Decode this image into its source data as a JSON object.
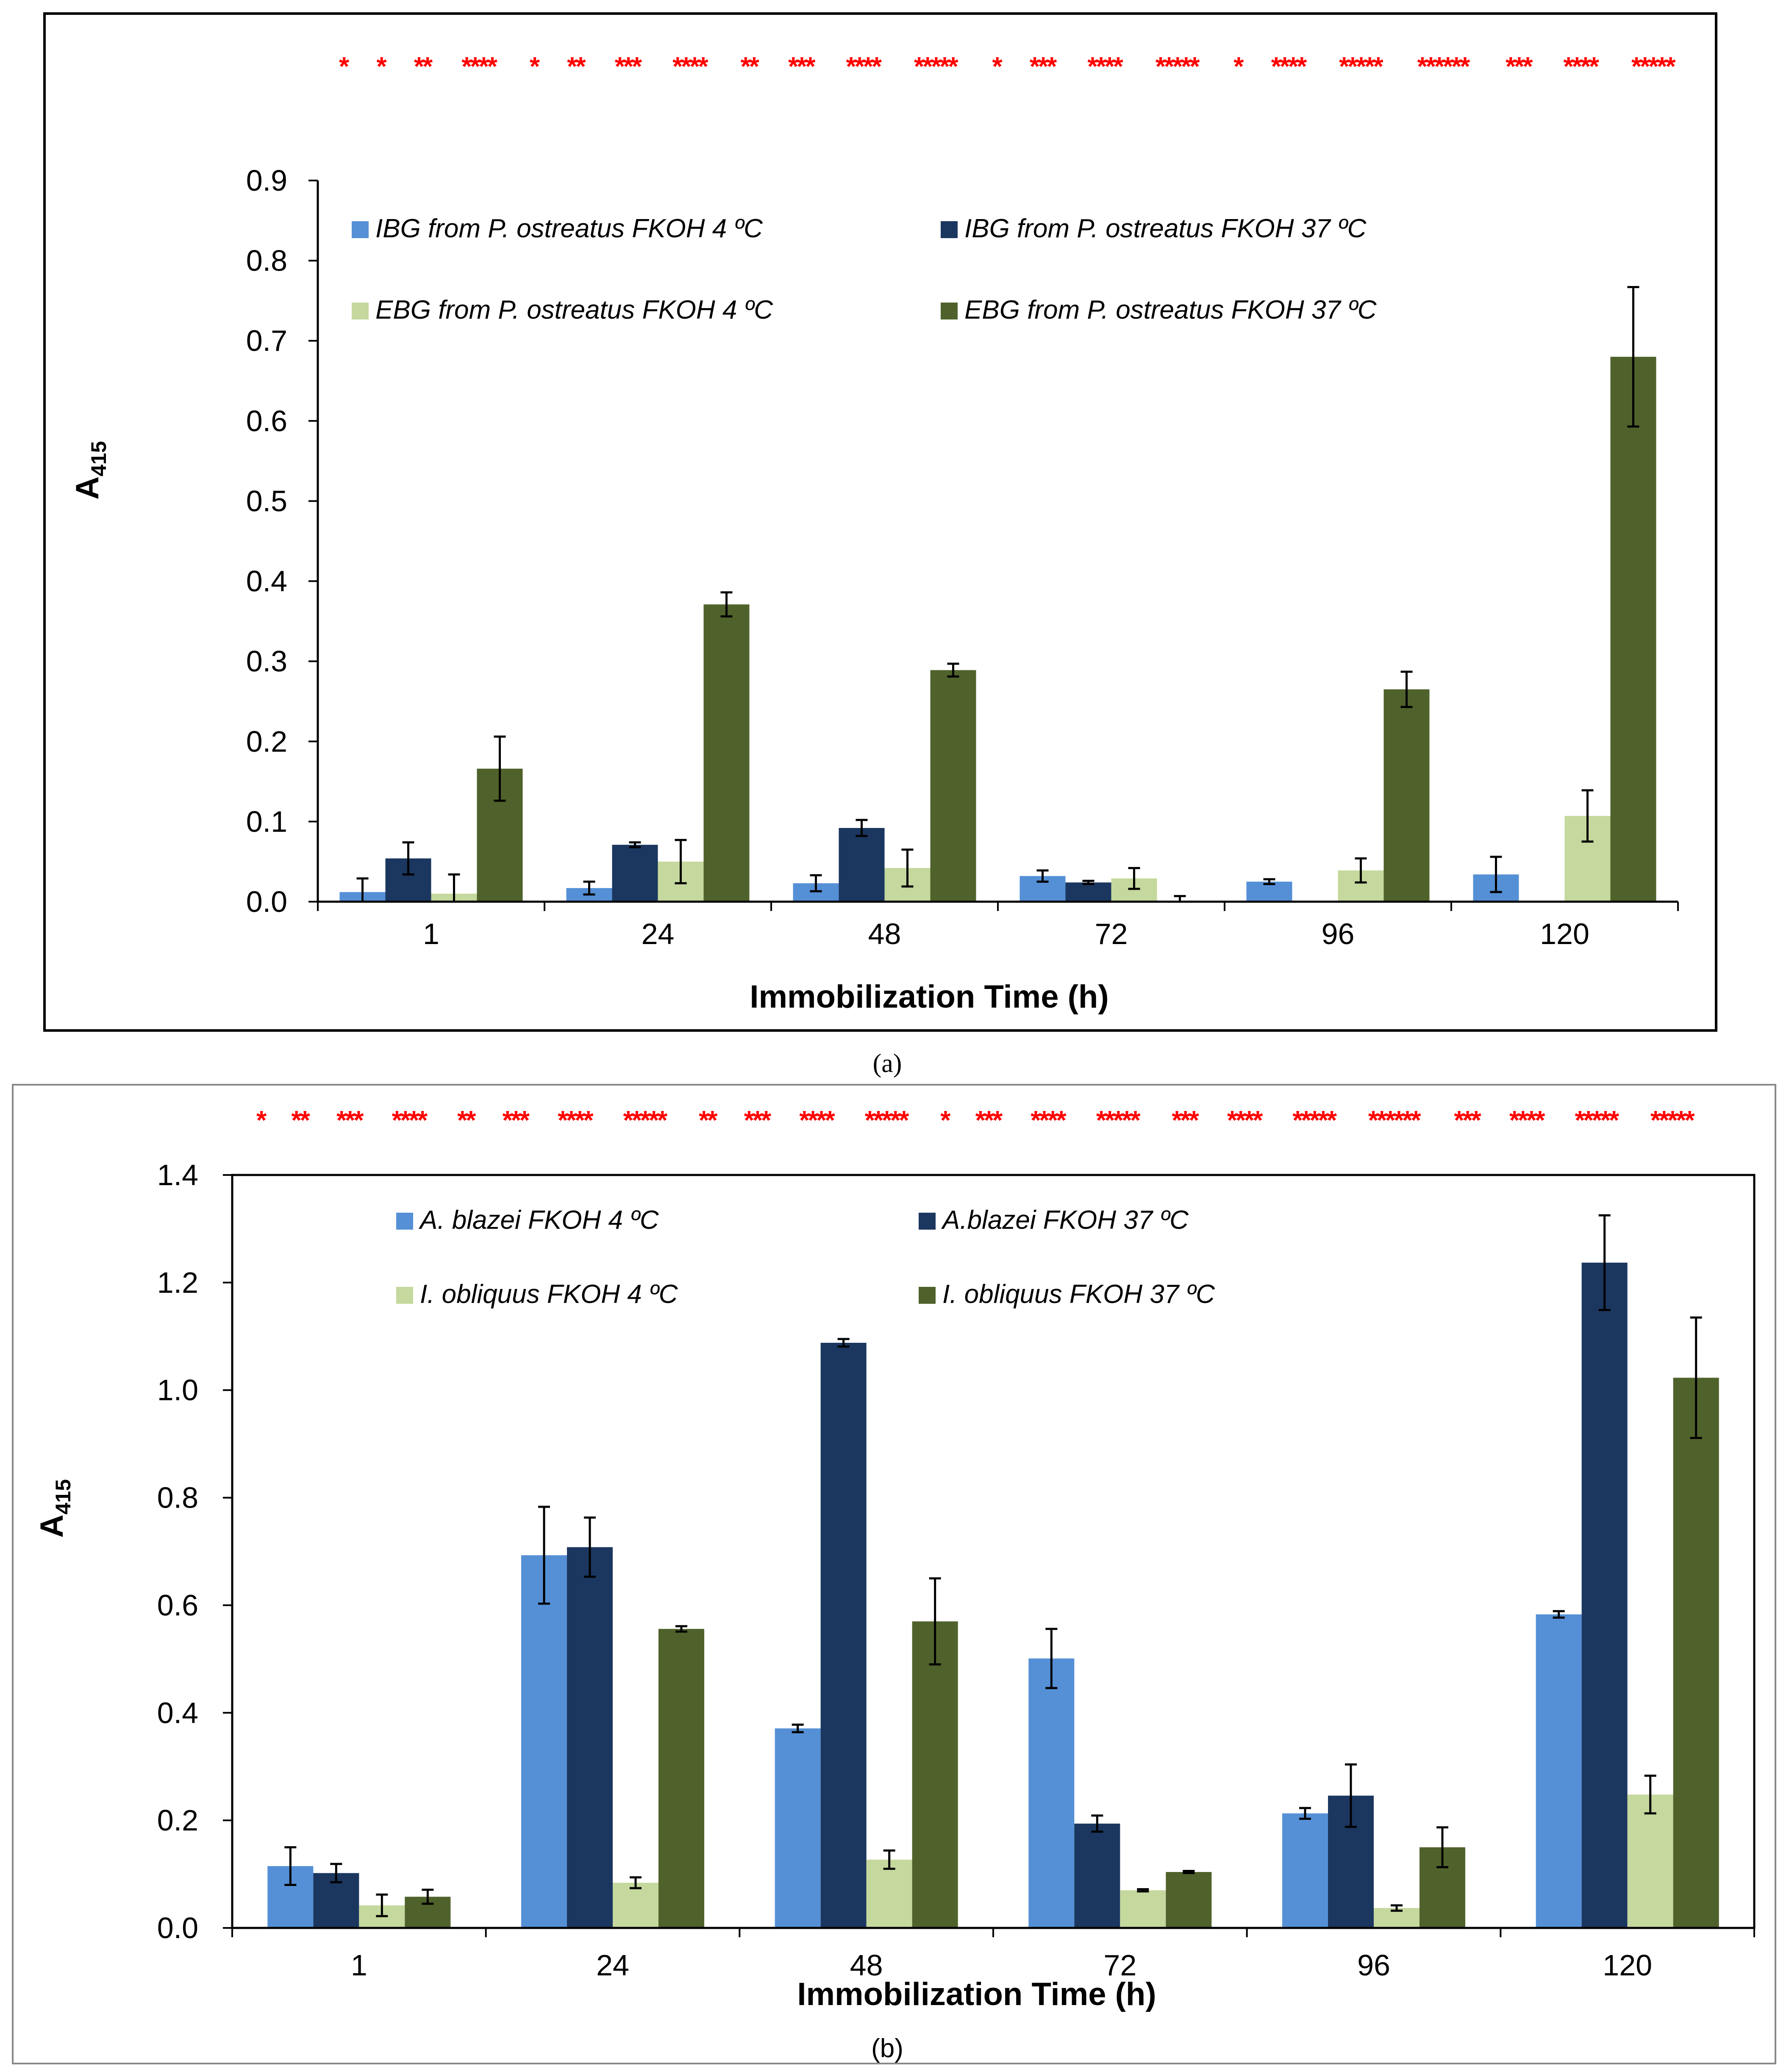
{
  "colors": {
    "light_blue": "#5590D6",
    "dark_navy": "#1B3760",
    "light_green": "#C5D89D",
    "dark_olive": "#4F622B",
    "significance_red": "#FF0000",
    "axis_black": "#000000",
    "panel_b_border": "#888888"
  },
  "chart_data": [
    {
      "panel": "a",
      "type": "bar",
      "caption": "(a)",
      "xlabel": "Immobilization Time (h)",
      "ylabel_main": "A",
      "ylabel_sub": "415",
      "categories": [
        "1",
        "24",
        "48",
        "72",
        "96",
        "120"
      ],
      "ylim": [
        0,
        0.9
      ],
      "yticks": [
        "0.0",
        "0.1",
        "0.2",
        "0.3",
        "0.4",
        "0.5",
        "0.6",
        "0.7",
        "0.8",
        "0.9"
      ],
      "grid": false,
      "legend_position": "top-left inside plot, 2 columns",
      "series": [
        {
          "name": "IBG from P. ostreatus FKOH 4 ºC",
          "color": "light_blue",
          "values": [
            0.012,
            0.017,
            0.023,
            0.032,
            0.025,
            0.034
          ],
          "errors": [
            0.017,
            0.008,
            0.01,
            0.007,
            0.003,
            0.022
          ]
        },
        {
          "name": "IBG from P. ostreatus  FKOH 37 ºC",
          "color": "dark_navy",
          "values": [
            0.054,
            0.071,
            0.092,
            0.024,
            0,
            0
          ],
          "errors": [
            0.02,
            0.003,
            0.01,
            0.002,
            0,
            0
          ]
        },
        {
          "name": "EBG from P. ostreatus FKOH 4 ºC",
          "color": "light_green",
          "values": [
            0.01,
            0.05,
            0.042,
            0.029,
            0.039,
            0.107
          ],
          "errors": [
            0.024,
            0.027,
            0.023,
            0.013,
            0.015,
            0.032
          ]
        },
        {
          "name": "EBG from P. ostreatus FKOH 37 ºC",
          "color": "dark_olive",
          "values": [
            0.166,
            0.371,
            0.289,
            0,
            0.265,
            0.68
          ],
          "errors": [
            0.04,
            0.015,
            0.008,
            0.007,
            0.022,
            0.087
          ]
        }
      ],
      "significance": [
        "*",
        "*",
        "**",
        "****",
        "*",
        "**",
        "***",
        "****",
        "**",
        "***",
        "****",
        "*****",
        "*",
        "***",
        "****",
        "*****",
        "*",
        "****",
        "*****",
        "******",
        "***",
        "****",
        "*****"
      ]
    },
    {
      "panel": "b",
      "type": "bar",
      "caption": "(b)",
      "xlabel": "Immobilization Time (h)",
      "ylabel_main": "A",
      "ylabel_sub": "415",
      "categories": [
        "1",
        "24",
        "48",
        "72",
        "96",
        "120"
      ],
      "ylim": [
        0,
        1.4
      ],
      "yticks": [
        "0.0",
        "0.2",
        "0.4",
        "0.6",
        "0.8",
        "1.0",
        "1.2",
        "1.4"
      ],
      "grid": false,
      "legend_position": "top-left inside plot, 2 columns",
      "series": [
        {
          "name": "A. blazei FKOH 4 ºC",
          "color": "light_blue",
          "values": [
            0.115,
            0.693,
            0.371,
            0.501,
            0.213,
            0.583
          ],
          "errors": [
            0.035,
            0.09,
            0.007,
            0.055,
            0.01,
            0.006
          ]
        },
        {
          "name": "A.blazei FKOH 37 ºC",
          "color": "dark_navy",
          "values": [
            0.102,
            0.708,
            1.088,
            0.194,
            0.246,
            1.237
          ],
          "errors": [
            0.017,
            0.055,
            0.007,
            0.015,
            0.058,
            0.088
          ]
        },
        {
          "name": "I. obliquus FKOH 4 ºC",
          "color": "light_green",
          "values": [
            0.042,
            0.084,
            0.127,
            0.07,
            0.037,
            0.248
          ],
          "errors": [
            0.02,
            0.01,
            0.017,
            0.002,
            0.005,
            0.035
          ]
        },
        {
          "name": "I. obliquus FKOH 37 ºC",
          "color": "dark_olive",
          "values": [
            0.058,
            0.556,
            0.57,
            0.104,
            0.15,
            1.023
          ],
          "errors": [
            0.013,
            0.005,
            0.08,
            0.002,
            0.037,
            0.112
          ]
        }
      ],
      "significance": [
        "*",
        "**",
        "***",
        "****",
        "**",
        "***",
        "****",
        "*****",
        "**",
        "***",
        "****",
        "*****",
        "*",
        "***",
        "****",
        "*****",
        "***",
        "****",
        "*****",
        "******",
        "***",
        "****",
        "*****",
        "*****"
      ]
    }
  ]
}
